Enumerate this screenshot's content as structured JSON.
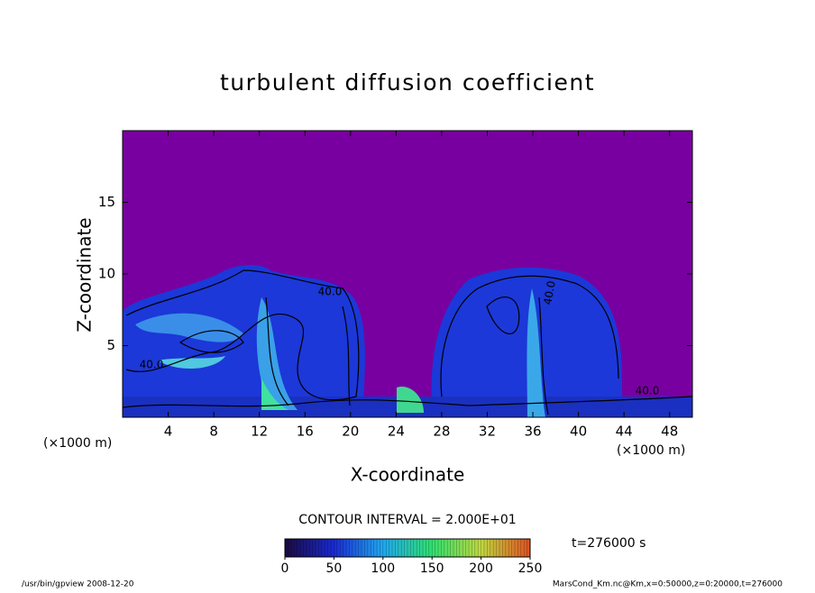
{
  "chart_data": {
    "type": "contour",
    "title": "turbulent diffusion coefficient",
    "x_label": "X-coordinate",
    "y_label": "Z-coordinate",
    "x_unit_left": "(×1000 m)",
    "x_unit_right": "(×1000 m)",
    "xlim": [
      0,
      50
    ],
    "ylim": [
      0,
      20
    ],
    "xticks": [
      4,
      8,
      12,
      16,
      20,
      24,
      28,
      32,
      36,
      40,
      44,
      48
    ],
    "yticks": [
      5,
      10,
      15
    ],
    "contour_labels": [
      "40.0",
      "40.0",
      "40.0",
      "40.0"
    ],
    "contour_interval": "CONTOUR INTERVAL = 2.000E+01",
    "time_label": "t=276000 s",
    "colorbar": {
      "lim": [
        0,
        250
      ],
      "ticks": [
        0,
        50,
        100,
        150,
        200,
        250
      ],
      "colors": [
        "#1a0a40",
        "#1a2ad0",
        "#20a8f0",
        "#30e070",
        "#c0d840",
        "#e05020"
      ]
    },
    "background_color": "#7800a0",
    "footer_left": "/usr/bin/gpview  2008-12-20",
    "footer_right": "MarsCond_Km.nc@Km,x=0:50000,z=0:20000,t=276000"
  }
}
